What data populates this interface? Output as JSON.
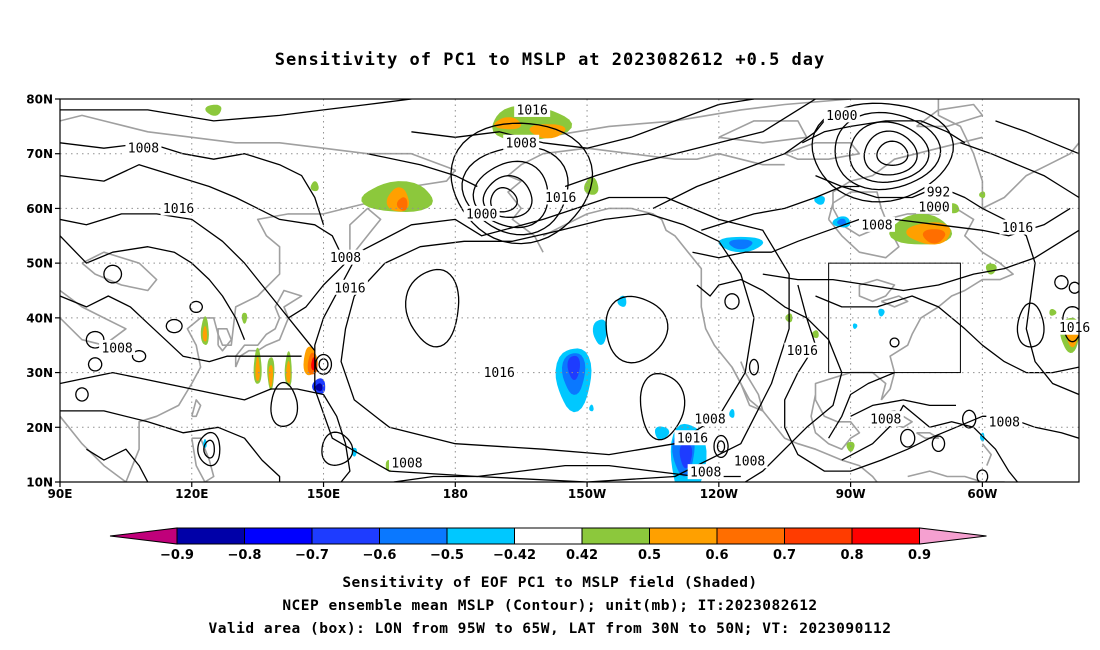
{
  "title": "Sensitivity of PC1 to MSLP at 2023082612 +0.5 day",
  "captions": {
    "line1": "Sensitivity of EOF PC1 to MSLP field (Shaded)",
    "line2": "NCEP ensemble mean MSLP (Contour); unit(mb); IT:2023082612",
    "line3": "Valid area (box): LON from 95W to 65W, LAT from 30N to 50N; VT: 2023090112"
  },
  "map": {
    "lat_labels": [
      "80N",
      "70N",
      "60N",
      "50N",
      "40N",
      "30N",
      "20N",
      "10N"
    ],
    "lon_labels": [
      "90E",
      "120E",
      "150E",
      "180",
      "150W",
      "120W",
      "90W",
      "60W"
    ],
    "lat_values": [
      80,
      70,
      60,
      50,
      40,
      30,
      20,
      10
    ],
    "lon_values": [
      90,
      120,
      150,
      180,
      210,
      240,
      270,
      300
    ],
    "lon_range": [
      90,
      322
    ],
    "lat_range": [
      10,
      80
    ],
    "valid_box": {
      "lon_min": 265,
      "lon_max": 295,
      "lat_min": 30,
      "lat_max": 50
    },
    "contour_labels": [
      {
        "text": "1016",
        "lon": 197.5,
        "lat": 78
      },
      {
        "text": "1008",
        "lon": 195,
        "lat": 72
      },
      {
        "text": "1000",
        "lon": 186,
        "lat": 59
      },
      {
        "text": "1016",
        "lon": 204,
        "lat": 62
      },
      {
        "text": "1008",
        "lon": 109,
        "lat": 71
      },
      {
        "text": "1016",
        "lon": 117,
        "lat": 60
      },
      {
        "text": "1008",
        "lon": 155,
        "lat": 51
      },
      {
        "text": "1016",
        "lon": 156,
        "lat": 45.5
      },
      {
        "text": "1008",
        "lon": 103,
        "lat": 34.5
      },
      {
        "text": "1016",
        "lon": 190,
        "lat": 30
      },
      {
        "text": "1016",
        "lon": 234,
        "lat": 18
      },
      {
        "text": "1016",
        "lon": 259,
        "lat": 34
      },
      {
        "text": "1008",
        "lon": 238,
        "lat": 21.5
      },
      {
        "text": "1008",
        "lon": 278,
        "lat": 21.5
      },
      {
        "text": "1008",
        "lon": 305,
        "lat": 21
      },
      {
        "text": "1008",
        "lon": 237,
        "lat": 11.8
      },
      {
        "text": "1008",
        "lon": 169,
        "lat": 13.5
      },
      {
        "text": "1008",
        "lon": 247,
        "lat": 13.8
      },
      {
        "text": "1008",
        "lon": 276,
        "lat": 57
      },
      {
        "text": "1000",
        "lon": 268,
        "lat": 77
      },
      {
        "text": "992",
        "lon": 290,
        "lat": 63
      },
      {
        "text": "1000",
        "lon": 289,
        "lat": 60.3
      },
      {
        "text": "1016",
        "lon": 308,
        "lat": 56.5
      },
      {
        "text": "1016",
        "lon": 321,
        "lat": 38.2
      }
    ]
  },
  "colorbar": {
    "labels": [
      "−0.9",
      "−0.8",
      "−0.7",
      "−0.6",
      "−0.5",
      "−0.42",
      "0.42",
      "0.5",
      "0.6",
      "0.7",
      "0.8",
      "0.9"
    ],
    "thresholds": [
      -0.9,
      -0.8,
      -0.7,
      -0.6,
      -0.5,
      -0.42,
      0.42,
      0.5,
      0.6,
      0.7,
      0.8,
      0.9
    ],
    "colors": [
      "#c0007a",
      "#0000a8",
      "#0000ff",
      "#1e3cff",
      "#0a78ff",
      "#00c8ff",
      "#ffffff",
      "#8cc83c",
      "#ffa000",
      "#ff6e00",
      "#ff3c00",
      "#ff0000",
      "#f5a0d0"
    ]
  },
  "colors": {
    "land_outline": "#a0a0a0",
    "contour": "#000000",
    "grid": "#909090"
  }
}
